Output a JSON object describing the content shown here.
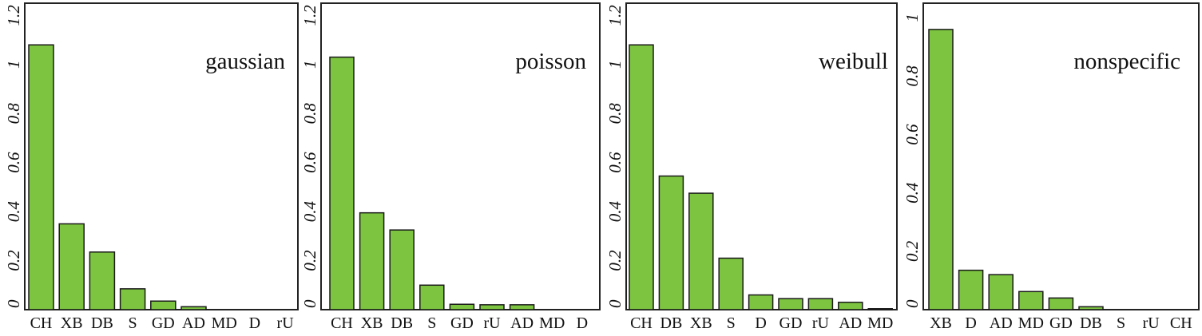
{
  "colors": {
    "bar_fill": "#7dc540",
    "bar_stroke": "#1a1a1a",
    "frame": "#222222"
  },
  "chart_data": [
    {
      "type": "bar",
      "title": "gaussian",
      "categories": [
        "CH",
        "XB",
        "DB",
        "S",
        "GD",
        "AD",
        "MD",
        "D",
        "rU"
      ],
      "values": [
        1.08,
        0.35,
        0.235,
        0.085,
        0.035,
        0.012,
        0,
        0,
        0
      ],
      "ylim": [
        0,
        1.25
      ],
      "yticks": [
        0,
        0.2,
        0.4,
        0.6,
        0.8,
        1,
        1.2
      ],
      "ytick_labels": [
        "0",
        "0.2",
        "0.4",
        "0.6",
        "0.8",
        "1",
        "1.2"
      ]
    },
    {
      "type": "bar",
      "title": "poisson",
      "categories": [
        "CH",
        "XB",
        "DB",
        "S",
        "GD",
        "rU",
        "AD",
        "MD",
        "D"
      ],
      "values": [
        1.03,
        0.395,
        0.325,
        0.1,
        0.022,
        0.02,
        0.02,
        0,
        0
      ],
      "ylim": [
        0,
        1.25
      ],
      "yticks": [
        0,
        0.2,
        0.4,
        0.6,
        0.8,
        1,
        1.2
      ],
      "ytick_labels": [
        "0",
        "0.2",
        "0.4",
        "0.6",
        "0.8",
        "1",
        "1.2"
      ]
    },
    {
      "type": "bar",
      "title": "weibull",
      "categories": [
        "CH",
        "DB",
        "XB",
        "S",
        "D",
        "GD",
        "rU",
        "AD",
        "MD"
      ],
      "values": [
        1.08,
        0.545,
        0.475,
        0.21,
        0.06,
        0.045,
        0.045,
        0.03,
        0.004
      ],
      "ylim": [
        0,
        1.25
      ],
      "yticks": [
        0,
        0.2,
        0.4,
        0.6,
        0.8,
        1,
        1.2
      ],
      "ytick_labels": [
        "0",
        "0.2",
        "0.4",
        "0.6",
        "0.8",
        "1",
        "1.2"
      ]
    },
    {
      "type": "bar",
      "title": "nonspecific",
      "categories": [
        "XB",
        "D",
        "AD",
        "MD",
        "GD",
        "DB",
        "S",
        "rU",
        "CH"
      ],
      "values": [
        0.96,
        0.135,
        0.12,
        0.062,
        0.04,
        0.01,
        0,
        0,
        0
      ],
      "ylim": [
        0,
        1.05
      ],
      "yticks": [
        0,
        0.2,
        0.4,
        0.6,
        0.8,
        1
      ],
      "ytick_labels": [
        "0",
        "0.2",
        "0.4",
        "0.6",
        "0.8",
        "1"
      ]
    }
  ]
}
